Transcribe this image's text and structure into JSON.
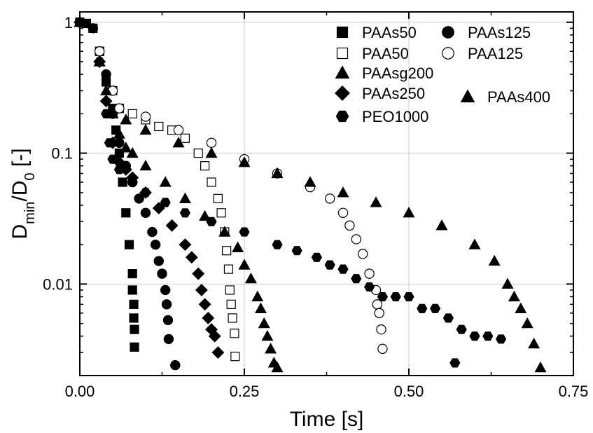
{
  "chart_data": {
    "type": "scatter",
    "title": "",
    "xlabel": "Time [s]",
    "ylabel_main": "D",
    "ylabel_sub1": "min",
    "ylabel_mid": "/D",
    "ylabel_sub2": "0",
    "ylabel_tail": " [-]",
    "xlim": [
      0,
      0.75
    ],
    "ylim": [
      0.002,
      1.2
    ],
    "yscale": "log",
    "grid": true,
    "legend_position": "top-right",
    "x_ticks": [
      0.0,
      0.25,
      0.5,
      0.75
    ],
    "x_tick_labels": [
      "0.00",
      "0.25",
      "0.50",
      "0.75"
    ],
    "y_ticks": [
      0.01,
      0.1,
      1
    ],
    "y_tick_labels": [
      "0.01",
      "0.1",
      "1"
    ],
    "series": [
      {
        "name": "PAAs50",
        "marker": "square",
        "fill": "filled",
        "points": [
          [
            0.0,
            1.0
          ],
          [
            0.01,
            0.98
          ],
          [
            0.02,
            0.9
          ],
          [
            0.03,
            0.6
          ],
          [
            0.04,
            0.35
          ],
          [
            0.05,
            0.22
          ],
          [
            0.055,
            0.15
          ],
          [
            0.06,
            0.1
          ],
          [
            0.065,
            0.06
          ],
          [
            0.07,
            0.035
          ],
          [
            0.075,
            0.02
          ],
          [
            0.08,
            0.012
          ],
          [
            0.08,
            0.009
          ],
          [
            0.082,
            0.007
          ],
          [
            0.082,
            0.0055
          ],
          [
            0.083,
            0.0045
          ],
          [
            0.083,
            0.0033
          ]
        ]
      },
      {
        "name": "PAAs125",
        "marker": "circle",
        "fill": "filled",
        "points": [
          [
            0.0,
            1.0
          ],
          [
            0.02,
            0.9
          ],
          [
            0.04,
            0.4
          ],
          [
            0.05,
            0.2
          ],
          [
            0.06,
            0.12
          ],
          [
            0.07,
            0.08
          ],
          [
            0.08,
            0.06
          ],
          [
            0.09,
            0.045
          ],
          [
            0.1,
            0.035
          ],
          [
            0.11,
            0.025
          ],
          [
            0.115,
            0.02
          ],
          [
            0.12,
            0.015
          ],
          [
            0.125,
            0.012
          ],
          [
            0.13,
            0.009
          ],
          [
            0.132,
            0.007
          ],
          [
            0.134,
            0.0053
          ],
          [
            0.135,
            0.0038
          ],
          [
            0.145,
            0.0024
          ]
        ]
      },
      {
        "name": "PAA50",
        "marker": "square",
        "fill": "open",
        "points": [
          [
            0.0,
            1.0
          ],
          [
            0.03,
            0.6
          ],
          [
            0.05,
            0.3
          ],
          [
            0.06,
            0.22
          ],
          [
            0.08,
            0.2
          ],
          [
            0.1,
            0.18
          ],
          [
            0.12,
            0.16
          ],
          [
            0.14,
            0.15
          ],
          [
            0.16,
            0.13
          ],
          [
            0.18,
            0.1
          ],
          [
            0.19,
            0.08
          ],
          [
            0.2,
            0.06
          ],
          [
            0.21,
            0.045
          ],
          [
            0.215,
            0.035
          ],
          [
            0.22,
            0.025
          ],
          [
            0.223,
            0.018
          ],
          [
            0.226,
            0.013
          ],
          [
            0.228,
            0.009
          ],
          [
            0.23,
            0.007
          ],
          [
            0.232,
            0.0055
          ],
          [
            0.235,
            0.0042
          ],
          [
            0.236,
            0.0028
          ]
        ]
      },
      {
        "name": "PAA125",
        "marker": "circle",
        "fill": "open",
        "points": [
          [
            0.0,
            1.0
          ],
          [
            0.03,
            0.6
          ],
          [
            0.05,
            0.3
          ],
          [
            0.06,
            0.22
          ],
          [
            0.1,
            0.19
          ],
          [
            0.15,
            0.15
          ],
          [
            0.2,
            0.12
          ],
          [
            0.25,
            0.09
          ],
          [
            0.3,
            0.07
          ],
          [
            0.35,
            0.055
          ],
          [
            0.38,
            0.045
          ],
          [
            0.4,
            0.035
          ],
          [
            0.41,
            0.028
          ],
          [
            0.42,
            0.022
          ],
          [
            0.43,
            0.017
          ],
          [
            0.44,
            0.012
          ],
          [
            0.45,
            0.009
          ],
          [
            0.452,
            0.007
          ],
          [
            0.455,
            0.006
          ],
          [
            0.458,
            0.0045
          ],
          [
            0.46,
            0.0032
          ]
        ]
      },
      {
        "name": "PAAsg200",
        "marker": "triangle",
        "fill": "filled",
        "points": [
          [
            0.0,
            1.0
          ],
          [
            0.03,
            0.5
          ],
          [
            0.05,
            0.2
          ],
          [
            0.06,
            0.14
          ],
          [
            0.07,
            0.11
          ],
          [
            0.08,
            0.1
          ],
          [
            0.1,
            0.08
          ],
          [
            0.13,
            0.06
          ],
          [
            0.16,
            0.045
          ],
          [
            0.19,
            0.033
          ],
          [
            0.22,
            0.025
          ],
          [
            0.24,
            0.019
          ],
          [
            0.25,
            0.014
          ],
          [
            0.26,
            0.011
          ],
          [
            0.27,
            0.008
          ],
          [
            0.275,
            0.0065
          ],
          [
            0.28,
            0.005
          ],
          [
            0.285,
            0.004
          ],
          [
            0.29,
            0.0032
          ],
          [
            0.295,
            0.0025
          ],
          [
            0.3,
            0.0023
          ]
        ]
      },
      {
        "name": "PAAs250",
        "marker": "diamond",
        "fill": "filled",
        "points": [
          [
            0.0,
            1.0
          ],
          [
            0.03,
            0.5
          ],
          [
            0.04,
            0.25
          ],
          [
            0.05,
            0.12
          ],
          [
            0.06,
            0.085
          ],
          [
            0.07,
            0.075
          ],
          [
            0.08,
            0.065
          ],
          [
            0.1,
            0.05
          ],
          [
            0.12,
            0.038
          ],
          [
            0.14,
            0.028
          ],
          [
            0.16,
            0.02
          ],
          [
            0.17,
            0.016
          ],
          [
            0.18,
            0.012
          ],
          [
            0.185,
            0.009
          ],
          [
            0.19,
            0.007
          ],
          [
            0.195,
            0.0055
          ],
          [
            0.2,
            0.0045
          ],
          [
            0.205,
            0.004
          ],
          [
            0.21,
            0.003
          ]
        ]
      },
      {
        "name": "PAAs400",
        "marker": "triangle",
        "fill": "filled",
        "points": [
          [
            0.0,
            1.0
          ],
          [
            0.03,
            0.5
          ],
          [
            0.04,
            0.3
          ],
          [
            0.05,
            0.2
          ],
          [
            0.07,
            0.18
          ],
          [
            0.1,
            0.15
          ],
          [
            0.15,
            0.12
          ],
          [
            0.2,
            0.1
          ],
          [
            0.25,
            0.085
          ],
          [
            0.3,
            0.07
          ],
          [
            0.35,
            0.06
          ],
          [
            0.4,
            0.05
          ],
          [
            0.45,
            0.042
          ],
          [
            0.5,
            0.035
          ],
          [
            0.55,
            0.028
          ],
          [
            0.6,
            0.02
          ],
          [
            0.63,
            0.015
          ],
          [
            0.65,
            0.01
          ],
          [
            0.66,
            0.008
          ],
          [
            0.67,
            0.0065
          ],
          [
            0.68,
            0.005
          ],
          [
            0.69,
            0.0035
          ],
          [
            0.7,
            0.0023
          ]
        ]
      },
      {
        "name": "PEO1000",
        "marker": "hexagon",
        "fill": "filled",
        "points": [
          [
            0.0,
            1.0
          ],
          [
            0.03,
            0.5
          ],
          [
            0.04,
            0.2
          ],
          [
            0.045,
            0.12
          ],
          [
            0.05,
            0.09
          ],
          [
            0.06,
            0.075
          ],
          [
            0.08,
            0.06
          ],
          [
            0.1,
            0.05
          ],
          [
            0.13,
            0.042
          ],
          [
            0.16,
            0.035
          ],
          [
            0.2,
            0.03
          ],
          [
            0.25,
            0.025
          ],
          [
            0.3,
            0.02
          ],
          [
            0.33,
            0.018
          ],
          [
            0.36,
            0.016
          ],
          [
            0.38,
            0.014
          ],
          [
            0.4,
            0.013
          ],
          [
            0.42,
            0.011
          ],
          [
            0.44,
            0.0095
          ],
          [
            0.46,
            0.008
          ],
          [
            0.48,
            0.008
          ],
          [
            0.5,
            0.008
          ],
          [
            0.52,
            0.0065
          ],
          [
            0.54,
            0.0065
          ],
          [
            0.56,
            0.0055
          ],
          [
            0.58,
            0.0045
          ],
          [
            0.6,
            0.004
          ],
          [
            0.62,
            0.004
          ],
          [
            0.64,
            0.0038
          ],
          [
            0.57,
            0.0025
          ]
        ]
      }
    ]
  }
}
